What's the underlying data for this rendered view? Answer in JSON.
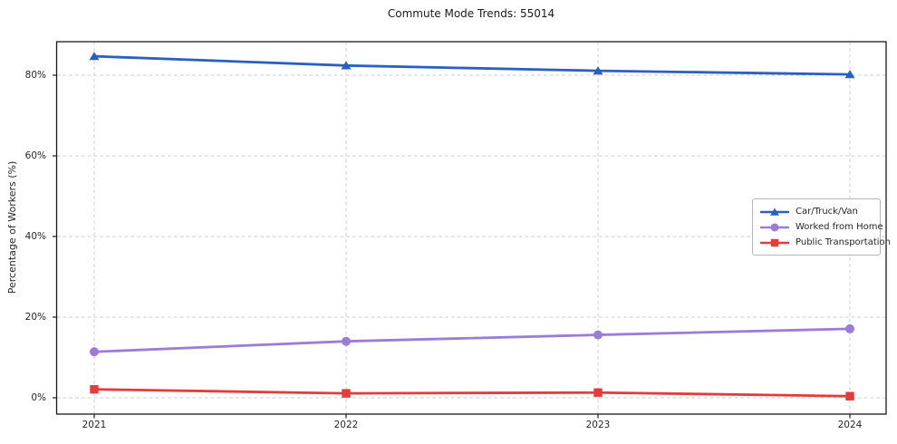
{
  "chart_data": {
    "type": "line",
    "title": "Commute Mode Trends: 55014",
    "xlabel": "",
    "ylabel": "Percentage of Workers (%)",
    "categories": [
      "2021",
      "2022",
      "2023",
      "2024"
    ],
    "y_ticks": [
      0,
      20,
      40,
      60,
      80
    ],
    "y_tick_labels": [
      "0%",
      "20%",
      "40%",
      "60%",
      "80%"
    ],
    "ylim": [
      -4,
      88.5
    ],
    "grid": true,
    "grid_style": "dashed",
    "legend_position": "center-right",
    "series": [
      {
        "name": "Car/Truck/Van",
        "marker": "triangle",
        "color": "#2b5fc0",
        "values": [
          84.7,
          82.4,
          81.1,
          80.2
        ]
      },
      {
        "name": "Worked from Home",
        "marker": "circle",
        "color": "#9b7cd6",
        "values": [
          11.4,
          14.0,
          15.6,
          17.1
        ]
      },
      {
        "name": "Public Transportation",
        "marker": "square",
        "color": "#e23c3c",
        "values": [
          2.1,
          1.1,
          1.3,
          0.4
        ]
      }
    ]
  },
  "colors": {
    "grid": "#cfcfcf",
    "spine": "#1a1a1a",
    "text": "#262626",
    "background": "#ffffff",
    "legend_border": "#b5b5b5"
  }
}
